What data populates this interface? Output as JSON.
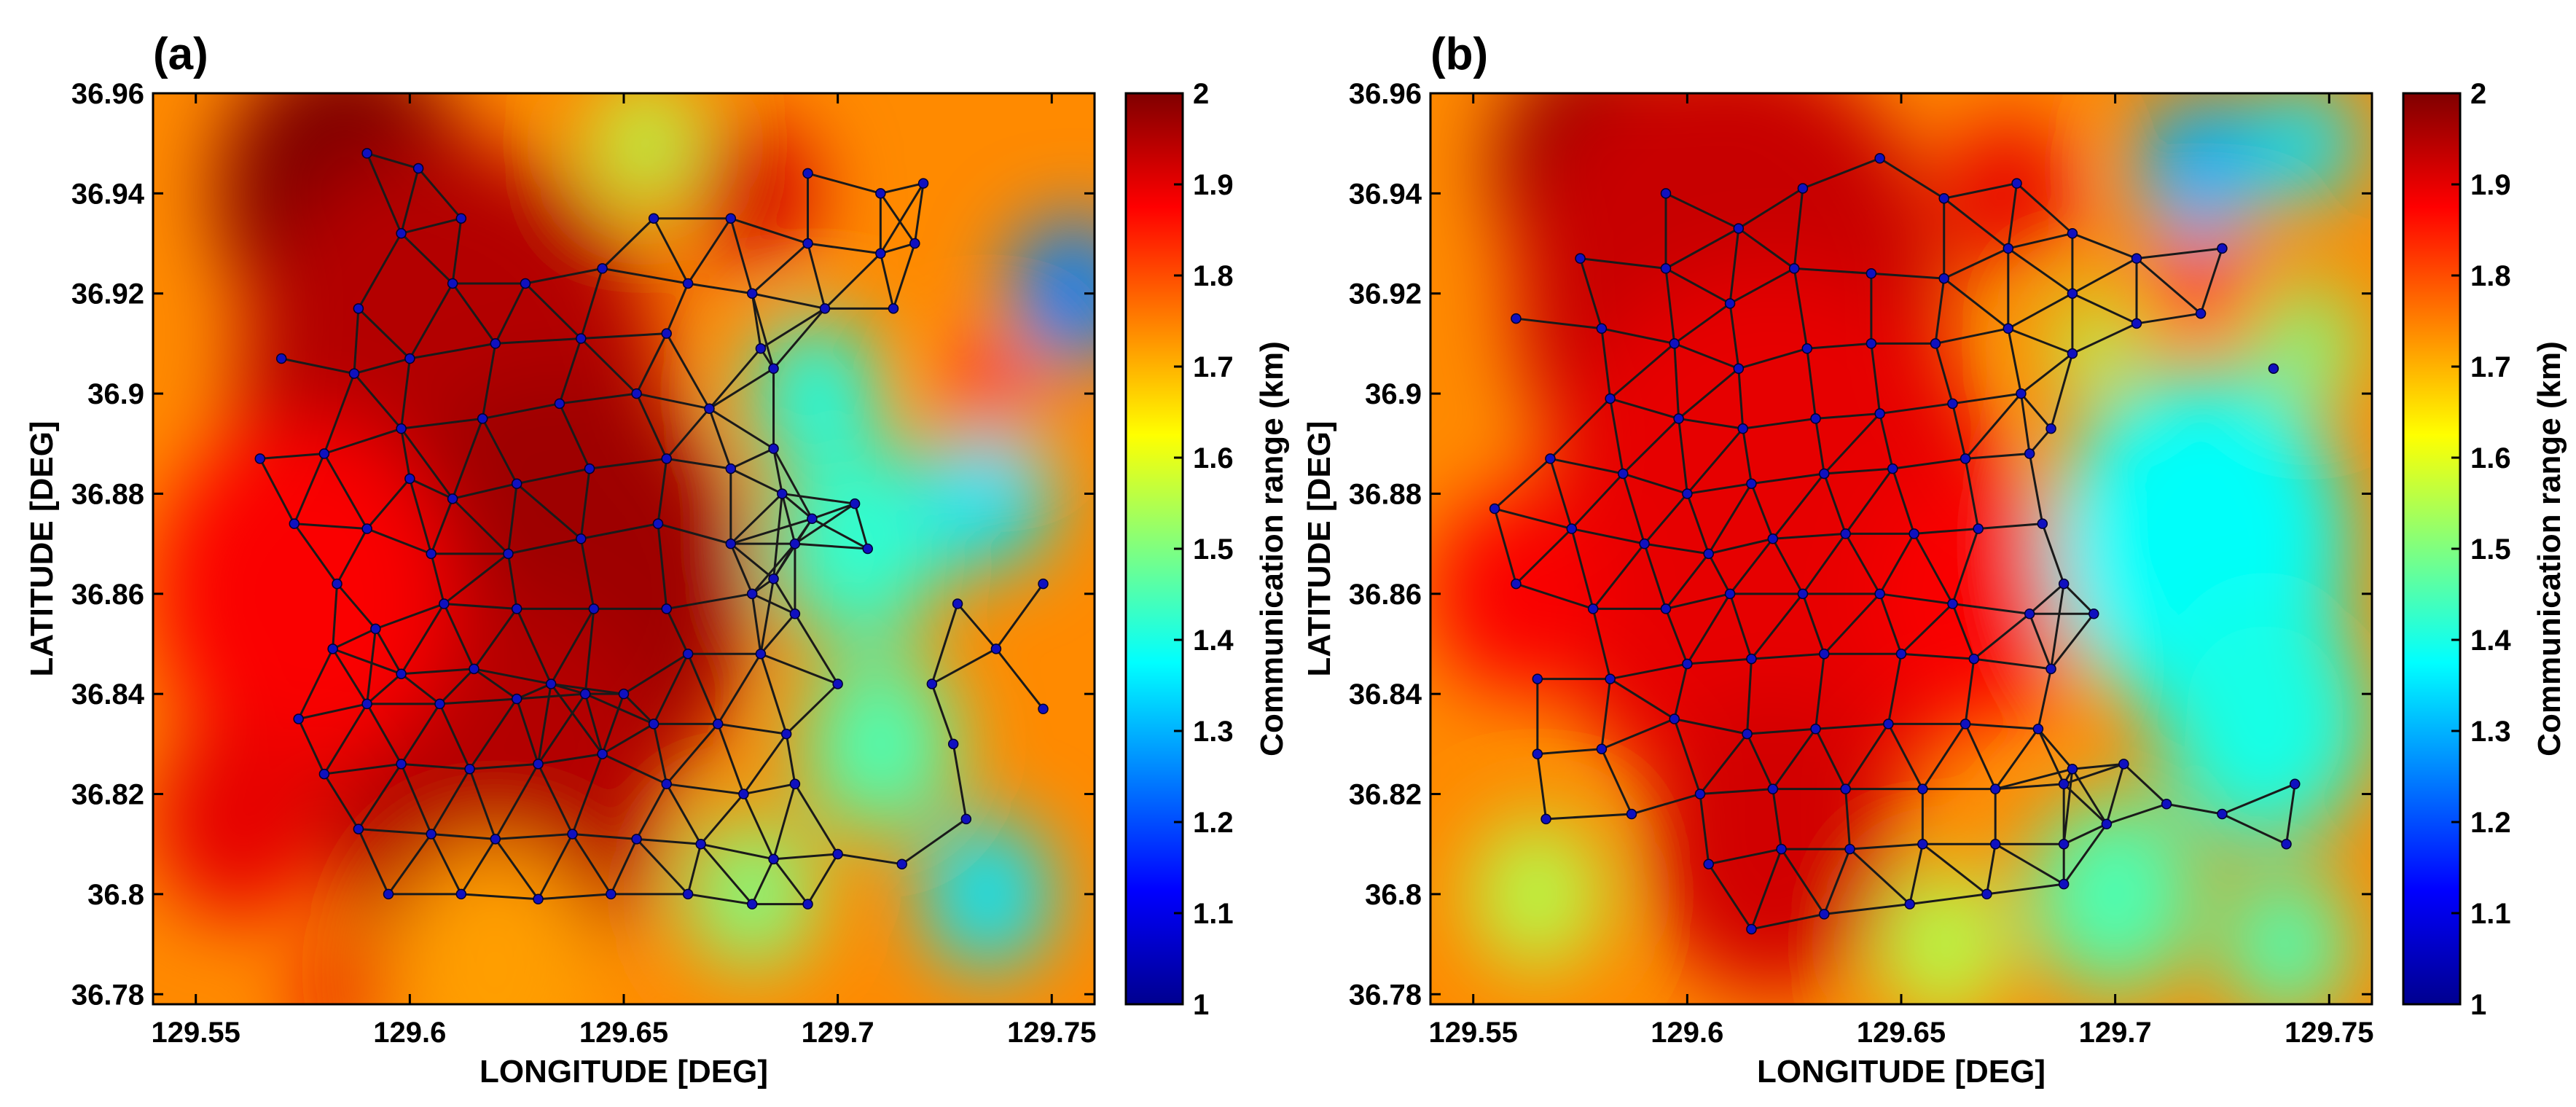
{
  "chart_data": [
    {
      "type": "heatmap",
      "panel_label": "(a)",
      "xlabel": "LONGITUDE [DEG]",
      "ylabel": "LATITUDE [DEG]",
      "xlim": [
        129.54,
        129.76
      ],
      "ylim": [
        36.778,
        36.96
      ],
      "xticks": [
        129.55,
        129.6,
        129.65,
        129.7,
        129.75
      ],
      "xtick_labels": [
        "129.55",
        "129.6",
        "129.65",
        "129.7",
        "129.75"
      ],
      "yticks": [
        36.78,
        36.8,
        36.82,
        36.84,
        36.86,
        36.88,
        36.9,
        36.92,
        36.94,
        36.96
      ],
      "ytick_labels": [
        "36.78",
        "36.8",
        "36.82",
        "36.84",
        "36.86",
        "36.88",
        "36.9",
        "36.92",
        "36.94",
        "36.96"
      ],
      "colorbar": {
        "label": "Communication range (km)",
        "range": [
          1,
          2
        ],
        "ticks": [
          1,
          1.1,
          1.2,
          1.3,
          1.4,
          1.5,
          1.6,
          1.7,
          1.8,
          1.9,
          2
        ],
        "tick_labels": [
          "1",
          "1.1",
          "1.2",
          "1.3",
          "1.4",
          "1.5",
          "1.6",
          "1.7",
          "1.8",
          "1.9",
          "2"
        ]
      },
      "field_blobs": [
        {
          "lon": 129.585,
          "lat": 36.94,
          "value": 2.0,
          "r": 0.03
        },
        {
          "lon": 129.61,
          "lat": 36.9,
          "value": 1.95,
          "r": 0.05
        },
        {
          "lon": 129.635,
          "lat": 36.86,
          "value": 1.97,
          "r": 0.045
        },
        {
          "lon": 129.62,
          "lat": 36.82,
          "value": 1.95,
          "r": 0.04
        },
        {
          "lon": 129.575,
          "lat": 36.86,
          "value": 1.88,
          "r": 0.035
        },
        {
          "lon": 129.56,
          "lat": 36.815,
          "value": 1.9,
          "r": 0.02
        },
        {
          "lon": 129.68,
          "lat": 36.94,
          "value": 1.92,
          "r": 0.015
        },
        {
          "lon": 129.695,
          "lat": 36.9,
          "value": 1.4,
          "r": 0.015
        },
        {
          "lon": 129.705,
          "lat": 36.87,
          "value": 1.42,
          "r": 0.02
        },
        {
          "lon": 129.71,
          "lat": 36.83,
          "value": 1.45,
          "r": 0.018
        },
        {
          "lon": 129.735,
          "lat": 36.88,
          "value": 1.35,
          "r": 0.015
        },
        {
          "lon": 129.755,
          "lat": 36.92,
          "value": 1.25,
          "r": 0.015
        },
        {
          "lon": 129.735,
          "lat": 36.8,
          "value": 1.35,
          "r": 0.015
        },
        {
          "lon": 129.62,
          "lat": 36.785,
          "value": 1.72,
          "r": 0.025
        },
        {
          "lon": 129.585,
          "lat": 36.78,
          "value": 1.9,
          "r": 0.01
        },
        {
          "lon": 129.655,
          "lat": 36.95,
          "value": 1.55,
          "r": 0.012
        },
        {
          "lon": 129.735,
          "lat": 36.9,
          "value": 1.85,
          "r": 0.01
        },
        {
          "lon": 129.68,
          "lat": 36.8,
          "value": 1.5,
          "r": 0.015
        }
      ],
      "nodes": [
        [
          129.59,
          36.948
        ],
        [
          129.602,
          36.945
        ],
        [
          129.612,
          36.935
        ],
        [
          129.598,
          36.932
        ],
        [
          129.588,
          36.917
        ],
        [
          129.61,
          36.922
        ],
        [
          129.6,
          36.907
        ],
        [
          129.57,
          36.907
        ],
        [
          129.587,
          36.904
        ],
        [
          129.58,
          36.888
        ],
        [
          129.565,
          36.887
        ],
        [
          129.573,
          36.874
        ],
        [
          129.583,
          36.862
        ],
        [
          129.59,
          36.873
        ],
        [
          129.6,
          36.883
        ],
        [
          129.598,
          36.893
        ],
        [
          129.62,
          36.91
        ],
        [
          129.627,
          36.922
        ],
        [
          129.64,
          36.911
        ],
        [
          129.645,
          36.925
        ],
        [
          129.657,
          36.935
        ],
        [
          129.66,
          36.912
        ],
        [
          129.675,
          36.935
        ],
        [
          129.665,
          36.922
        ],
        [
          129.68,
          36.92
        ],
        [
          129.693,
          36.944
        ],
        [
          129.71,
          36.94
        ],
        [
          129.72,
          36.942
        ],
        [
          129.693,
          36.93
        ],
        [
          129.71,
          36.928
        ],
        [
          129.718,
          36.93
        ],
        [
          129.697,
          36.917
        ],
        [
          129.713,
          36.917
        ],
        [
          129.682,
          36.909
        ],
        [
          129.685,
          36.905
        ],
        [
          129.617,
          36.895
        ],
        [
          129.635,
          36.898
        ],
        [
          129.653,
          36.9
        ],
        [
          129.67,
          36.897
        ],
        [
          129.685,
          36.889
        ],
        [
          129.61,
          36.879
        ],
        [
          129.625,
          36.882
        ],
        [
          129.642,
          36.885
        ],
        [
          129.66,
          36.887
        ],
        [
          129.675,
          36.885
        ],
        [
          129.605,
          36.868
        ],
        [
          129.623,
          36.868
        ],
        [
          129.64,
          36.871
        ],
        [
          129.658,
          36.874
        ],
        [
          129.675,
          36.87
        ],
        [
          129.685,
          36.863
        ],
        [
          129.687,
          36.88
        ],
        [
          129.694,
          36.875
        ],
        [
          129.704,
          36.878
        ],
        [
          129.707,
          36.869
        ],
        [
          129.69,
          36.87
        ],
        [
          129.592,
          36.853
        ],
        [
          129.608,
          36.858
        ],
        [
          129.625,
          36.857
        ],
        [
          129.643,
          36.857
        ],
        [
          129.66,
          36.857
        ],
        [
          129.68,
          36.86
        ],
        [
          129.69,
          36.856
        ],
        [
          129.582,
          36.849
        ],
        [
          129.598,
          36.844
        ],
        [
          129.615,
          36.845
        ],
        [
          129.633,
          36.842
        ],
        [
          129.65,
          36.84
        ],
        [
          129.665,
          36.848
        ],
        [
          129.682,
          36.848
        ],
        [
          129.7,
          36.842
        ],
        [
          129.574,
          36.835
        ],
        [
          129.59,
          36.838
        ],
        [
          129.607,
          36.838
        ],
        [
          129.625,
          36.839
        ],
        [
          129.641,
          36.84
        ],
        [
          129.657,
          36.834
        ],
        [
          129.672,
          36.834
        ],
        [
          129.688,
          36.832
        ],
        [
          129.58,
          36.824
        ],
        [
          129.598,
          36.826
        ],
        [
          129.614,
          36.825
        ],
        [
          129.63,
          36.826
        ],
        [
          129.645,
          36.828
        ],
        [
          129.66,
          36.822
        ],
        [
          129.678,
          36.82
        ],
        [
          129.69,
          36.822
        ],
        [
          129.588,
          36.813
        ],
        [
          129.605,
          36.812
        ],
        [
          129.62,
          36.811
        ],
        [
          129.638,
          36.812
        ],
        [
          129.653,
          36.811
        ],
        [
          129.668,
          36.81
        ],
        [
          129.685,
          36.807
        ],
        [
          129.7,
          36.808
        ],
        [
          129.715,
          36.806
        ],
        [
          129.595,
          36.8
        ],
        [
          129.612,
          36.8
        ],
        [
          129.63,
          36.799
        ],
        [
          129.647,
          36.8
        ],
        [
          129.665,
          36.8
        ],
        [
          129.68,
          36.798
        ],
        [
          129.693,
          36.798
        ],
        [
          129.728,
          36.858
        ],
        [
          129.748,
          36.862
        ],
        [
          129.737,
          36.849
        ],
        [
          129.722,
          36.842
        ],
        [
          129.748,
          36.837
        ],
        [
          129.727,
          36.83
        ],
        [
          129.73,
          36.815
        ]
      ]
    },
    {
      "type": "heatmap",
      "panel_label": "(b)",
      "xlabel": "LONGITUDE [DEG]",
      "ylabel": "LATITUDE [DEG]",
      "xlim": [
        129.54,
        129.76
      ],
      "ylim": [
        36.778,
        36.96
      ],
      "xticks": [
        129.55,
        129.6,
        129.65,
        129.7,
        129.75
      ],
      "xtick_labels": [
        "129.55",
        "129.6",
        "129.65",
        "129.7",
        "129.75"
      ],
      "yticks": [
        36.78,
        36.8,
        36.82,
        36.84,
        36.86,
        36.88,
        36.9,
        36.92,
        36.94,
        36.96
      ],
      "ytick_labels": [
        "36.78",
        "36.8",
        "36.82",
        "36.84",
        "36.86",
        "36.88",
        "36.9",
        "36.92",
        "36.94",
        "36.96"
      ],
      "colorbar": {
        "label": "Communication range (km)",
        "range": [
          1,
          2
        ],
        "ticks": [
          1,
          1.1,
          1.2,
          1.3,
          1.4,
          1.5,
          1.6,
          1.7,
          1.8,
          1.9,
          2
        ],
        "tick_labels": [
          "1",
          "1.1",
          "1.2",
          "1.3",
          "1.4",
          "1.5",
          "1.6",
          "1.7",
          "1.8",
          "1.9",
          "2"
        ]
      },
      "field_blobs": [
        {
          "lon": 129.58,
          "lat": 36.945,
          "value": 1.98,
          "r": 0.025
        },
        {
          "lon": 129.61,
          "lat": 36.92,
          "value": 1.93,
          "r": 0.05
        },
        {
          "lon": 129.62,
          "lat": 36.87,
          "value": 1.9,
          "r": 0.055
        },
        {
          "lon": 129.67,
          "lat": 36.86,
          "value": 1.88,
          "r": 0.025
        },
        {
          "lon": 129.62,
          "lat": 36.81,
          "value": 1.92,
          "r": 0.03
        },
        {
          "lon": 129.56,
          "lat": 36.86,
          "value": 1.88,
          "r": 0.02
        },
        {
          "lon": 129.675,
          "lat": 36.94,
          "value": 1.9,
          "r": 0.015
        },
        {
          "lon": 129.72,
          "lat": 36.925,
          "value": 1.85,
          "r": 0.012
        },
        {
          "lon": 129.72,
          "lat": 36.87,
          "value": 1.38,
          "r": 0.035
        },
        {
          "lon": 129.735,
          "lat": 36.835,
          "value": 1.4,
          "r": 0.025
        },
        {
          "lon": 129.72,
          "lat": 36.945,
          "value": 1.3,
          "r": 0.015
        },
        {
          "lon": 129.745,
          "lat": 36.95,
          "value": 1.35,
          "r": 0.012
        },
        {
          "lon": 129.745,
          "lat": 36.91,
          "value": 1.5,
          "r": 0.012
        },
        {
          "lon": 129.7,
          "lat": 36.8,
          "value": 1.45,
          "r": 0.02
        },
        {
          "lon": 129.74,
          "lat": 36.79,
          "value": 1.45,
          "r": 0.015
        },
        {
          "lon": 129.565,
          "lat": 36.8,
          "value": 1.55,
          "r": 0.015
        },
        {
          "lon": 129.66,
          "lat": 36.79,
          "value": 1.55,
          "r": 0.015
        },
        {
          "lon": 129.695,
          "lat": 36.91,
          "value": 1.55,
          "r": 0.01
        }
      ],
      "nodes": [
        [
          129.595,
          36.94
        ],
        [
          129.575,
          36.927
        ],
        [
          129.56,
          36.915
        ],
        [
          129.612,
          36.933
        ],
        [
          129.627,
          36.941
        ],
        [
          129.645,
          36.947
        ],
        [
          129.66,
          36.939
        ],
        [
          129.677,
          36.942
        ],
        [
          129.595,
          36.925
        ],
        [
          129.61,
          36.918
        ],
        [
          129.625,
          36.925
        ],
        [
          129.643,
          36.924
        ],
        [
          129.66,
          36.923
        ],
        [
          129.675,
          36.929
        ],
        [
          129.69,
          36.932
        ],
        [
          129.58,
          36.913
        ],
        [
          129.597,
          36.91
        ],
        [
          129.612,
          36.905
        ],
        [
          129.628,
          36.909
        ],
        [
          129.643,
          36.91
        ],
        [
          129.658,
          36.91
        ],
        [
          129.675,
          36.913
        ],
        [
          129.69,
          36.908
        ],
        [
          129.705,
          36.927
        ],
        [
          129.725,
          36.929
        ],
        [
          129.72,
          36.916
        ],
        [
          129.737,
          36.905
        ],
        [
          129.69,
          36.92
        ],
        [
          129.705,
          36.914
        ],
        [
          129.582,
          36.899
        ],
        [
          129.598,
          36.895
        ],
        [
          129.613,
          36.893
        ],
        [
          129.63,
          36.895
        ],
        [
          129.645,
          36.896
        ],
        [
          129.662,
          36.898
        ],
        [
          129.678,
          36.9
        ],
        [
          129.685,
          36.893
        ],
        [
          129.568,
          36.887
        ],
        [
          129.585,
          36.884
        ],
        [
          129.6,
          36.88
        ],
        [
          129.615,
          36.882
        ],
        [
          129.632,
          36.884
        ],
        [
          129.648,
          36.885
        ],
        [
          129.665,
          36.887
        ],
        [
          129.68,
          36.888
        ],
        [
          129.555,
          36.877
        ],
        [
          129.573,
          36.873
        ],
        [
          129.59,
          36.87
        ],
        [
          129.605,
          36.868
        ],
        [
          129.62,
          36.871
        ],
        [
          129.637,
          36.872
        ],
        [
          129.653,
          36.872
        ],
        [
          129.668,
          36.873
        ],
        [
          129.683,
          36.874
        ],
        [
          129.688,
          36.862
        ],
        [
          129.56,
          36.862
        ],
        [
          129.578,
          36.857
        ],
        [
          129.595,
          36.857
        ],
        [
          129.61,
          36.86
        ],
        [
          129.627,
          36.86
        ],
        [
          129.645,
          36.86
        ],
        [
          129.662,
          36.858
        ],
        [
          129.68,
          36.856
        ],
        [
          129.695,
          36.856
        ],
        [
          129.565,
          36.843
        ],
        [
          129.582,
          36.843
        ],
        [
          129.6,
          36.846
        ],
        [
          129.615,
          36.847
        ],
        [
          129.632,
          36.848
        ],
        [
          129.65,
          36.848
        ],
        [
          129.667,
          36.847
        ],
        [
          129.685,
          36.845
        ],
        [
          129.565,
          36.828
        ],
        [
          129.58,
          36.829
        ],
        [
          129.597,
          36.835
        ],
        [
          129.614,
          36.832
        ],
        [
          129.63,
          36.833
        ],
        [
          129.647,
          36.834
        ],
        [
          129.665,
          36.834
        ],
        [
          129.682,
          36.833
        ],
        [
          129.69,
          36.825
        ],
        [
          129.567,
          36.815
        ],
        [
          129.587,
          36.816
        ],
        [
          129.603,
          36.82
        ],
        [
          129.62,
          36.821
        ],
        [
          129.637,
          36.821
        ],
        [
          129.655,
          36.821
        ],
        [
          129.672,
          36.821
        ],
        [
          129.688,
          36.822
        ],
        [
          129.702,
          36.826
        ],
        [
          129.698,
          36.814
        ],
        [
          129.712,
          36.818
        ],
        [
          129.725,
          36.816
        ],
        [
          129.74,
          36.81
        ],
        [
          129.742,
          36.822
        ],
        [
          129.605,
          36.806
        ],
        [
          129.622,
          36.809
        ],
        [
          129.638,
          36.809
        ],
        [
          129.655,
          36.81
        ],
        [
          129.672,
          36.81
        ],
        [
          129.688,
          36.81
        ],
        [
          129.615,
          36.793
        ],
        [
          129.632,
          36.796
        ],
        [
          129.652,
          36.798
        ],
        [
          129.67,
          36.8
        ],
        [
          129.688,
          36.802
        ]
      ]
    }
  ]
}
